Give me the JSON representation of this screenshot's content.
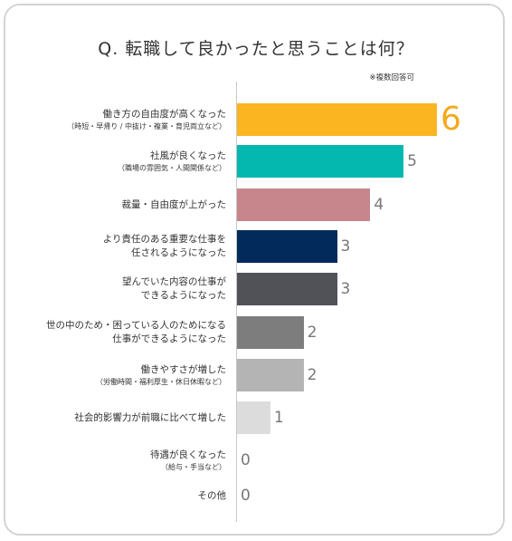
{
  "title": "Q. 転職して良かったと思うことは何？",
  "note": "※複数回答可",
  "chart_data": {
    "type": "bar",
    "orientation": "horizontal",
    "categories": [
      {
        "lines": [
          "働き方の自由度が高くなった"
        ],
        "sub": "（時短・早帰り / 中抜け・複業・育児両立など）"
      },
      {
        "lines": [
          "社風が良くなった"
        ],
        "sub": "（職場の雰囲気・人間関係など）"
      },
      {
        "lines": [
          "裁量・自由度が上がった"
        ],
        "sub": ""
      },
      {
        "lines": [
          "より責任のある重要な仕事を",
          "任されるようになった"
        ],
        "sub": ""
      },
      {
        "lines": [
          "望んでいた内容の仕事が",
          "できるようになった"
        ],
        "sub": ""
      },
      {
        "lines": [
          "世の中のため・困っている人のためになる",
          "仕事ができるようになった"
        ],
        "sub": ""
      },
      {
        "lines": [
          "働きやすさが増した"
        ],
        "sub": "（労働時間・福利厚生・休日休暇など）"
      },
      {
        "lines": [
          "社会的影響力が前職に比べて増した"
        ],
        "sub": ""
      },
      {
        "lines": [
          "待遇が良くなった"
        ],
        "sub": "（給与・手当など）"
      },
      {
        "lines": [
          "その他"
        ],
        "sub": ""
      }
    ],
    "values": [
      6,
      5,
      4,
      3,
      3,
      2,
      2,
      1,
      0,
      0
    ],
    "colors": [
      "#fbb521",
      "#04b8b0",
      "#c7858c",
      "#022a5a",
      "#505258",
      "#7d7d7d",
      "#b4b4b4",
      "#dcdcdc",
      "#ffffff",
      "#ffffff"
    ],
    "xlim": [
      0,
      6
    ]
  }
}
